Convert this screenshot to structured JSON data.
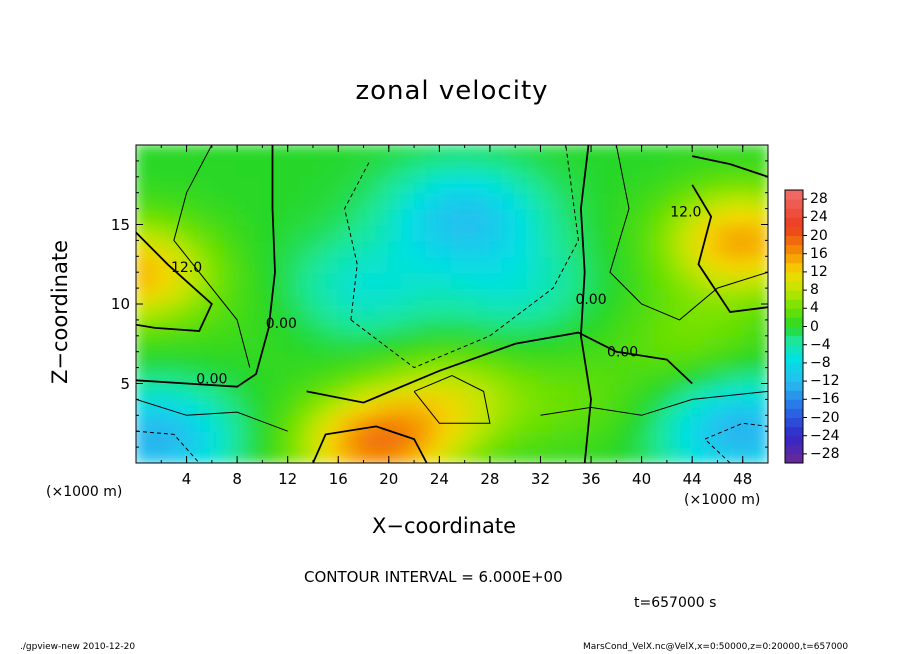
{
  "chart_data": {
    "type": "heatmap",
    "title": "zonal velocity",
    "xlabel": "X−coordinate",
    "ylabel": "Z−coordinate",
    "x_unit_label": "(×1000 m)",
    "xlim": [
      0,
      50
    ],
    "ylim": [
      0,
      20
    ],
    "x_ticks": [
      "4",
      "8",
      "12",
      "16",
      "20",
      "24",
      "28",
      "32",
      "36",
      "40",
      "44",
      "48"
    ],
    "x_tick_values": [
      4,
      8,
      12,
      16,
      20,
      24,
      28,
      32,
      36,
      40,
      44,
      48
    ],
    "y_ticks": [
      "5",
      "10",
      "15"
    ],
    "y_tick_values": [
      5,
      10,
      15
    ],
    "colorbar": {
      "labels": [
        "28",
        "24",
        "20",
        "16",
        "12",
        "8",
        "4",
        "0",
        "−4",
        "−8",
        "−12",
        "−16",
        "−20",
        "−24",
        "−28"
      ],
      "values": [
        28,
        24,
        20,
        16,
        12,
        8,
        4,
        0,
        -4,
        -8,
        -12,
        -16,
        -20,
        -24,
        -28
      ],
      "range": [
        -30,
        30
      ]
    },
    "contour_labels": [
      {
        "text": "12.0",
        "x": 4.0,
        "z": 12.0
      },
      {
        "text": "0.00",
        "x": 6.0,
        "z": 5.0
      },
      {
        "text": "0.00",
        "x": 11.5,
        "z": 8.5
      },
      {
        "text": "0.00",
        "x": 36.0,
        "z": 10.0
      },
      {
        "text": "0.00",
        "x": 38.5,
        "z": 6.7
      },
      {
        "text": "12.0",
        "x": 43.5,
        "z": 15.5
      }
    ],
    "field_peaks": [
      {
        "x": 0,
        "z": 12,
        "value": 14
      },
      {
        "x": 48,
        "z": 14,
        "value": 15
      },
      {
        "x": 19,
        "z": 1.2,
        "value": 17
      },
      {
        "x": 25,
        "z": 4,
        "value": 8
      },
      {
        "x": 35,
        "z": 4,
        "value": 3
      },
      {
        "x": 26,
        "z": 15.5,
        "value": -11
      },
      {
        "x": 18,
        "z": 11,
        "value": -6
      },
      {
        "x": 30,
        "z": 11,
        "value": -5
      },
      {
        "x": 1.5,
        "z": 1.5,
        "value": -13
      },
      {
        "x": 48,
        "z": 2,
        "value": -13
      },
      {
        "x": 10,
        "z": 9,
        "value": 1
      },
      {
        "x": 44,
        "z": 8,
        "value": 4
      }
    ],
    "contour_interval": "CONTOUR INTERVAL = 6.000E+00",
    "time": "t=657000 s"
  },
  "footer": {
    "left": "./gpview-new  2010-12-20",
    "right": "MarsCond_VelX.nc@VelX,x=0:50000,z=0:20000,t=657000"
  }
}
